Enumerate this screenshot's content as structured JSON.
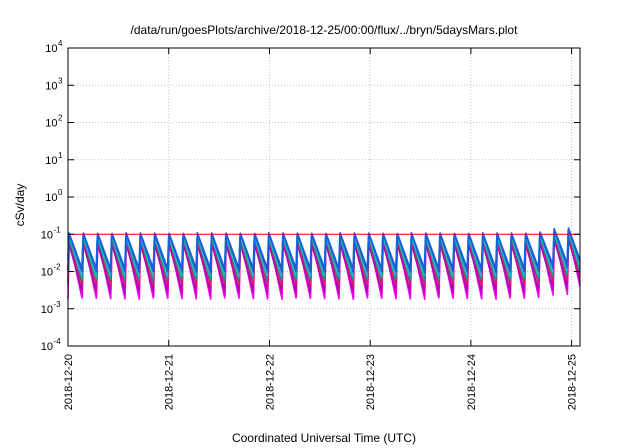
{
  "chart_data": {
    "type": "line",
    "title": "/data/run/goesPlots/archive/2018-12-25/00:00/flux/../bryn/5daysMars.plot",
    "xlabel": "Coordinated Universal Time (UTC)",
    "ylabel": "cSv/day",
    "x_scale": "time",
    "y_scale": "log",
    "xlim": [
      "2018-12-20 00:00",
      "2018-12-25 02:00"
    ],
    "ylim": [
      0.0001,
      10000
    ],
    "x_ticks": [
      "2018-12-20",
      "2018-12-21",
      "2018-12-22",
      "2018-12-23",
      "2018-12-24",
      "2018-12-25"
    ],
    "y_ticks": [
      {
        "base": "10",
        "exp": "-4",
        "value": 0.0001
      },
      {
        "base": "10",
        "exp": "-3",
        "value": 0.001
      },
      {
        "base": "10",
        "exp": "-2",
        "value": 0.01
      },
      {
        "base": "10",
        "exp": "-1",
        "value": 0.1
      },
      {
        "base": "10",
        "exp": "0",
        "value": 1
      },
      {
        "base": "10",
        "exp": "1",
        "value": 10
      },
      {
        "base": "10",
        "exp": "2",
        "value": 100
      },
      {
        "base": "10",
        "exp": "3",
        "value": 1000
      },
      {
        "base": "10",
        "exp": "4",
        "value": 10000
      }
    ],
    "grid": true,
    "legend": "none",
    "reference_line": {
      "value": 0.1,
      "color": "#e00000"
    },
    "pattern": {
      "description": "sawtooth: rapid rise then exponential decay, repeating",
      "cycle_hours": 3.4,
      "rise_hours": 0.3
    },
    "series": [
      {
        "color": "#ff00ff",
        "peak": 0.075,
        "trough": 0.0018
      },
      {
        "color": "#cc00cc",
        "peak": 0.085,
        "trough": 0.0024
      },
      {
        "color": "#b000b0",
        "peak": 0.06,
        "trough": 0.0032
      },
      {
        "color": "#d02060",
        "peak": 0.07,
        "trough": 0.0042
      },
      {
        "color": "#00a0a0",
        "peak": 0.08,
        "trough": 0.006
      },
      {
        "color": "#30b0c0",
        "peak": 0.095,
        "trough": 0.0075
      },
      {
        "color": "#2060c0",
        "peak": 0.1,
        "trough": 0.0095
      },
      {
        "color": "#1060e0",
        "peak": 0.11,
        "trough": 0.012
      }
    ],
    "late_rise": {
      "start": "2018-12-24 15:00",
      "factor": 1.35
    }
  }
}
